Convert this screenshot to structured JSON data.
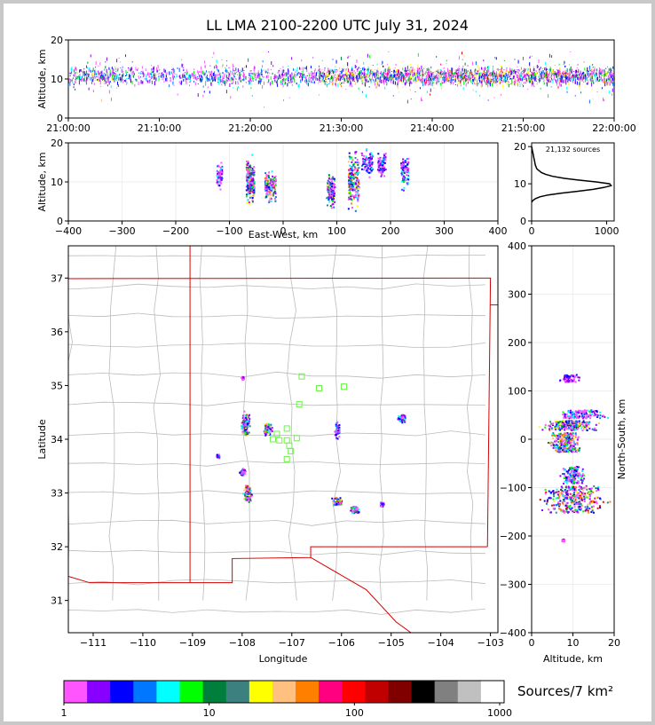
{
  "title": "LL LMA 2100-2200 UTC July 31, 2024",
  "colors": {
    "state_border": "#d40000",
    "county_border": "#bbbbbb",
    "station_marker": "#6cf24a",
    "profile_line": "#000000"
  },
  "chart_data": [
    {
      "id": "time_height",
      "type": "scatter",
      "xlabel": "",
      "ylabel": "Altitude, km",
      "xlim": [
        "21:00:00",
        "22:00:00"
      ],
      "ylim": [
        0,
        20
      ],
      "xticks": [
        "21:00:00",
        "21:10:00",
        "21:20:00",
        "21:30:00",
        "21:40:00",
        "21:50:00",
        "22:00:00"
      ],
      "yticks": [
        "0",
        "10",
        "20"
      ],
      "activity_by_5min": [
        0.55,
        0.7,
        0.5,
        0.4,
        0.35,
        0.45,
        0.55,
        0.5,
        0.45,
        0.55,
        0.5,
        0.8,
        0.9,
        0.85,
        0.95,
        0.9,
        0.9,
        1.0,
        0.95,
        0.9,
        0.9,
        0.95,
        0.85,
        0.8
      ],
      "core_altitude_km": [
        7,
        14
      ]
    },
    {
      "id": "east_west_height",
      "type": "scatter",
      "xlabel": "East-West, km",
      "ylabel": "Altitude, km",
      "xlim": [
        -400,
        400
      ],
      "ylim": [
        0,
        20
      ],
      "xticks": [
        "−400",
        "−300",
        "−200",
        "−100",
        "0",
        "100",
        "200",
        "300",
        "400"
      ],
      "yticks": [
        "0",
        "10",
        "20"
      ],
      "clusters": [
        {
          "x": [
            -125,
            -115
          ],
          "z": [
            7,
            16
          ],
          "level": 0.35
        },
        {
          "x": [
            -70,
            -55
          ],
          "z": [
            3,
            18
          ],
          "level": 0.85
        },
        {
          "x": [
            -35,
            -15
          ],
          "z": [
            4,
            14
          ],
          "level": 0.8
        },
        {
          "x": [
            80,
            95
          ],
          "z": [
            2,
            14
          ],
          "level": 0.6
        },
        {
          "x": [
            120,
            140
          ],
          "z": [
            2,
            20
          ],
          "level": 0.9
        },
        {
          "x": [
            145,
            165
          ],
          "z": [
            10,
            20
          ],
          "level": 0.35
        },
        {
          "x": [
            175,
            190
          ],
          "z": [
            10,
            19
          ],
          "level": 0.3
        },
        {
          "x": [
            218,
            232
          ],
          "z": [
            7,
            19
          ],
          "level": 0.4
        }
      ]
    },
    {
      "id": "altitude_histogram",
      "type": "line",
      "xlabel": "",
      "ylabel": "",
      "xlim": [
        0,
        1100
      ],
      "ylim": [
        0,
        21
      ],
      "xticks": [
        "0",
        "1000"
      ],
      "yticks": [
        "0",
        "10",
        "20"
      ],
      "annotation": "21,132 sources",
      "profile": [
        {
          "z": 5,
          "n": 0
        },
        {
          "z": 5.5,
          "n": 15
        },
        {
          "z": 6,
          "n": 50
        },
        {
          "z": 6.5,
          "n": 110
        },
        {
          "z": 7,
          "n": 220
        },
        {
          "z": 7.5,
          "n": 400
        },
        {
          "z": 8,
          "n": 620
        },
        {
          "z": 8.5,
          "n": 820
        },
        {
          "z": 9,
          "n": 960
        },
        {
          "z": 9.5,
          "n": 1060
        },
        {
          "z": 10,
          "n": 1040
        },
        {
          "z": 10.5,
          "n": 860
        },
        {
          "z": 11,
          "n": 620
        },
        {
          "z": 11.5,
          "n": 420
        },
        {
          "z": 12,
          "n": 280
        },
        {
          "z": 12.5,
          "n": 190
        },
        {
          "z": 13,
          "n": 130
        },
        {
          "z": 13.5,
          "n": 100
        },
        {
          "z": 14,
          "n": 70
        },
        {
          "z": 15,
          "n": 50
        },
        {
          "z": 16,
          "n": 40
        },
        {
          "z": 17,
          "n": 30
        },
        {
          "z": 18,
          "n": 20
        },
        {
          "z": 19,
          "n": 10
        },
        {
          "z": 20,
          "n": 0
        }
      ]
    },
    {
      "id": "plan_view",
      "type": "scatter",
      "xlabel": "Longitude",
      "ylabel": "Latitude",
      "xlim": [
        -111.5,
        -102.85
      ],
      "ylim": [
        30.4,
        37.6
      ],
      "xticks": [
        "−111",
        "−110",
        "−109",
        "−108",
        "−107",
        "−106",
        "−105",
        "−104",
        "−103"
      ],
      "yticks": [
        "31",
        "32",
        "33",
        "34",
        "35",
        "36",
        "37"
      ],
      "clusters": [
        {
          "lon": -107.95,
          "lat": 34.3,
          "w": 0.25,
          "h": 0.6,
          "level": 0.75
        },
        {
          "lon": -107.5,
          "lat": 34.2,
          "w": 0.2,
          "h": 0.3,
          "level": 0.75
        },
        {
          "lon": -106.1,
          "lat": 34.2,
          "w": 0.15,
          "h": 0.5,
          "level": 0.3
        },
        {
          "lon": -104.8,
          "lat": 34.4,
          "w": 0.2,
          "h": 0.2,
          "level": 0.5
        },
        {
          "lon": -108.0,
          "lat": 33.4,
          "w": 0.15,
          "h": 0.15,
          "level": 0.3
        },
        {
          "lon": -107.9,
          "lat": 33.0,
          "w": 0.2,
          "h": 0.4,
          "level": 0.85
        },
        {
          "lon": -106.1,
          "lat": 32.85,
          "w": 0.25,
          "h": 0.2,
          "level": 0.85
        },
        {
          "lon": -105.75,
          "lat": 32.7,
          "w": 0.25,
          "h": 0.15,
          "level": 0.6
        },
        {
          "lon": -105.2,
          "lat": 32.8,
          "w": 0.1,
          "h": 0.1,
          "level": 0.3
        },
        {
          "lon": -108.5,
          "lat": 33.7,
          "w": 0.08,
          "h": 0.08,
          "level": 0.3
        },
        {
          "lon": -108.0,
          "lat": 35.15,
          "w": 0.06,
          "h": 0.08,
          "level": 0.2
        }
      ],
      "stations": [
        {
          "lon": -106.8,
          "lat": 35.17
        },
        {
          "lon": -106.45,
          "lat": 34.95
        },
        {
          "lon": -105.95,
          "lat": 34.98
        },
        {
          "lon": -106.85,
          "lat": 34.65
        },
        {
          "lon": -107.1,
          "lat": 34.2
        },
        {
          "lon": -107.3,
          "lat": 34.1
        },
        {
          "lon": -107.38,
          "lat": 34.0
        },
        {
          "lon": -107.25,
          "lat": 33.98
        },
        {
          "lon": -107.1,
          "lat": 33.98
        },
        {
          "lon": -106.9,
          "lat": 34.02
        },
        {
          "lon": -107.05,
          "lat": 33.88
        },
        {
          "lon": -107.02,
          "lat": 33.78
        },
        {
          "lon": -107.1,
          "lat": 33.63
        }
      ]
    },
    {
      "id": "north_south_height",
      "type": "scatter",
      "xlabel": "Altitude, km",
      "ylabel": "North-South, km",
      "xlim": [
        0,
        20
      ],
      "ylim": [
        -400,
        400
      ],
      "xticks": [
        "0",
        "10",
        "20"
      ],
      "yticks": [
        "−400",
        "−300",
        "−200",
        "−100",
        "0",
        "100",
        "200",
        "300",
        "400"
      ],
      "clusters": [
        {
          "y": [
            120,
            135
          ],
          "z": [
            6,
            12
          ],
          "level": 0.2
        },
        {
          "y": [
            45,
            62
          ],
          "z": [
            5,
            19
          ],
          "level": 0.4
        },
        {
          "y": [
            20,
            40
          ],
          "z": [
            1,
            17
          ],
          "level": 0.75
        },
        {
          "y": [
            -25,
            15
          ],
          "z": [
            3,
            13
          ],
          "level": 0.8
        },
        {
          "y": [
            -90,
            -55
          ],
          "z": [
            6,
            14
          ],
          "level": 0.45
        },
        {
          "y": [
            -150,
            -95
          ],
          "z": [
            0,
            20
          ],
          "level": 1.0
        },
        {
          "y": [
            -210,
            -205
          ],
          "z": [
            7,
            8
          ],
          "level": 0.1
        }
      ]
    }
  ],
  "colorbar": {
    "label": "Sources/7 km²",
    "ticks": [
      "1",
      "10",
      "100",
      "1000"
    ],
    "colors": [
      "#ff55ff",
      "#8800ff",
      "#0000ff",
      "#0077ff",
      "#00ffff",
      "#00ff00",
      "#007e3c",
      "#3c8080",
      "#ffff00",
      "#ffc080",
      "#ff8000",
      "#ff0080",
      "#ff0000",
      "#c00000",
      "#800000",
      "#000000",
      "#808080",
      "#c0c0c0",
      "#ffffff"
    ]
  }
}
